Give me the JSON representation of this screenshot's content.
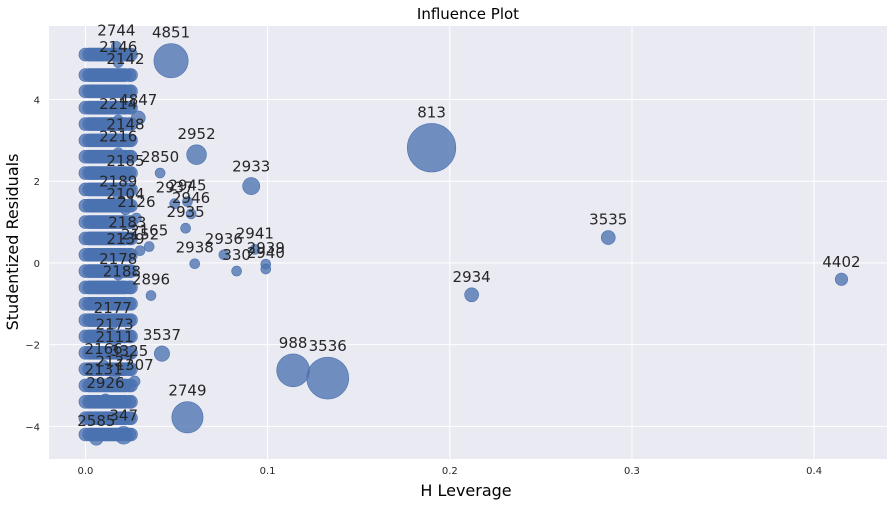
{
  "chart_data": {
    "type": "scatter",
    "title": "Influence Plot",
    "xlabel": "H Leverage",
    "ylabel": "Studentized Residuals",
    "xlim": [
      -0.02,
      0.44
    ],
    "ylim": [
      -4.8,
      5.8
    ],
    "x_ticks": [
      0.0,
      0.1,
      0.2,
      0.3,
      0.4
    ],
    "x_tick_labels": [
      "0.0",
      "0.1",
      "0.2",
      "0.3",
      "0.4"
    ],
    "y_ticks": [
      -4,
      -2,
      0,
      2,
      4
    ],
    "y_tick_labels": [
      "−4",
      "−2",
      "0",
      "2",
      "4"
    ],
    "grid": true,
    "marker_color": "#4c72b0",
    "size_encodes": "Cook's distance",
    "points": [
      {
        "label": "4851",
        "x": 0.047,
        "y": 4.95,
        "size": 0.06
      },
      {
        "label": "813",
        "x": 0.19,
        "y": 2.82,
        "size": 0.12
      },
      {
        "label": "3536",
        "x": 0.133,
        "y": -2.82,
        "size": 0.09
      },
      {
        "label": "988",
        "x": 0.114,
        "y": -2.63,
        "size": 0.055
      },
      {
        "label": "2749",
        "x": 0.056,
        "y": -3.78,
        "size": 0.05
      },
      {
        "label": "2952",
        "x": 0.061,
        "y": 2.65,
        "size": 0.02
      },
      {
        "label": "2933",
        "x": 0.091,
        "y": 1.88,
        "size": 0.015
      },
      {
        "label": "3535",
        "x": 0.287,
        "y": 0.62,
        "size": 0.01
      },
      {
        "label": "4402",
        "x": 0.415,
        "y": -0.4,
        "size": 0.008
      },
      {
        "label": "2934",
        "x": 0.212,
        "y": -0.78,
        "size": 0.01
      },
      {
        "label": "2941",
        "x": 0.093,
        "y": 0.33,
        "size": 0.003
      },
      {
        "label": "2939",
        "x": 0.099,
        "y": -0.03,
        "size": 0.002
      },
      {
        "label": "2940",
        "x": 0.099,
        "y": -0.15,
        "size": 0.002
      },
      {
        "label": "330",
        "x": 0.083,
        "y": -0.2,
        "size": 0.002
      },
      {
        "label": "2936",
        "x": 0.076,
        "y": 0.2,
        "size": 0.002
      },
      {
        "label": "2938",
        "x": 0.06,
        "y": -0.02,
        "size": 0.002
      },
      {
        "label": "3537",
        "x": 0.042,
        "y": -2.22,
        "size": 0.012
      },
      {
        "label": "2585",
        "x": 0.006,
        "y": -4.3,
        "size": 0.009
      },
      {
        "label": "347",
        "x": 0.021,
        "y": -4.22,
        "size": 0.016
      },
      {
        "label": "2926",
        "x": 0.011,
        "y": -3.35,
        "size": 0.007
      },
      {
        "label": "2744",
        "x": 0.017,
        "y": 5.3,
        "size": 0.004
      },
      {
        "label": "4847",
        "x": 0.029,
        "y": 3.55,
        "size": 0.01
      },
      {
        "label": "3325",
        "x": 0.024,
        "y": -2.55,
        "size": 0.005
      },
      {
        "label": "1307",
        "x": 0.027,
        "y": -2.9,
        "size": 0.006
      },
      {
        "label": "2937",
        "x": 0.049,
        "y": 1.45,
        "size": 0.004
      },
      {
        "label": "2945",
        "x": 0.056,
        "y": 1.5,
        "size": 0.004
      },
      {
        "label": "2946",
        "x": 0.058,
        "y": 1.2,
        "size": 0.003
      },
      {
        "label": "2935",
        "x": 0.055,
        "y": 0.85,
        "size": 0.003
      },
      {
        "label": "2850",
        "x": 0.041,
        "y": 2.2,
        "size": 0.004
      },
      {
        "label": "2896",
        "x": 0.036,
        "y": -0.8,
        "size": 0.003
      },
      {
        "label": "2214",
        "x": 0.018,
        "y": 3.5,
        "size": 0.004
      },
      {
        "label": "2146",
        "x": 0.018,
        "y": 4.9,
        "size": 0.004
      },
      {
        "label": "2142",
        "x": 0.022,
        "y": 4.6,
        "size": 0.004
      },
      {
        "label": "2148",
        "x": 0.022,
        "y": 3.0,
        "size": 0.004
      },
      {
        "label": "2216",
        "x": 0.018,
        "y": 2.7,
        "size": 0.004
      },
      {
        "label": "2185",
        "x": 0.022,
        "y": 2.1,
        "size": 0.004
      },
      {
        "label": "2189",
        "x": 0.018,
        "y": 1.6,
        "size": 0.004
      },
      {
        "label": "2104",
        "x": 0.022,
        "y": 1.3,
        "size": 0.004
      },
      {
        "label": "2126",
        "x": 0.028,
        "y": 1.1,
        "size": 0.004
      },
      {
        "label": "2183",
        "x": 0.023,
        "y": 0.6,
        "size": 0.004
      },
      {
        "label": "2165",
        "x": 0.035,
        "y": 0.4,
        "size": 0.004
      },
      {
        "label": "2152",
        "x": 0.03,
        "y": 0.3,
        "size": 0.004
      },
      {
        "label": "2139",
        "x": 0.022,
        "y": 0.2,
        "size": 0.004
      },
      {
        "label": "2178",
        "x": 0.018,
        "y": -0.3,
        "size": 0.004
      },
      {
        "label": "2188",
        "x": 0.02,
        "y": -0.6,
        "size": 0.004
      },
      {
        "label": "2177",
        "x": 0.015,
        "y": -1.5,
        "size": 0.004
      },
      {
        "label": "2173",
        "x": 0.016,
        "y": -1.9,
        "size": 0.004
      },
      {
        "label": "2111",
        "x": 0.016,
        "y": -2.2,
        "size": 0.004
      },
      {
        "label": "2166",
        "x": 0.01,
        "y": -2.5,
        "size": 0.004
      },
      {
        "label": "2127",
        "x": 0.016,
        "y": -2.8,
        "size": 0.004
      },
      {
        "label": "2131",
        "x": 0.01,
        "y": -3.0,
        "size": 0.004
      }
    ],
    "cluster_x": [
      0.0,
      0.004,
      0.008,
      0.012,
      0.016,
      0.02,
      0.024,
      0.003,
      0.006,
      0.01,
      0.014,
      0.018,
      0.022,
      0.005,
      0.009,
      0.013,
      0.017,
      0.021,
      0.025,
      0.002,
      0.007,
      0.011,
      0.015,
      0.019
    ],
    "cluster_y": [
      5.1,
      4.6,
      4.2,
      3.8,
      3.4,
      3.0,
      2.6,
      2.2,
      1.8,
      1.4,
      1.0,
      0.6,
      0.2,
      -0.2,
      -0.6,
      -1.0,
      -1.4,
      -1.8,
      -2.2,
      -2.6,
      -3.0,
      -3.4,
      -3.8,
      -4.2
    ]
  }
}
